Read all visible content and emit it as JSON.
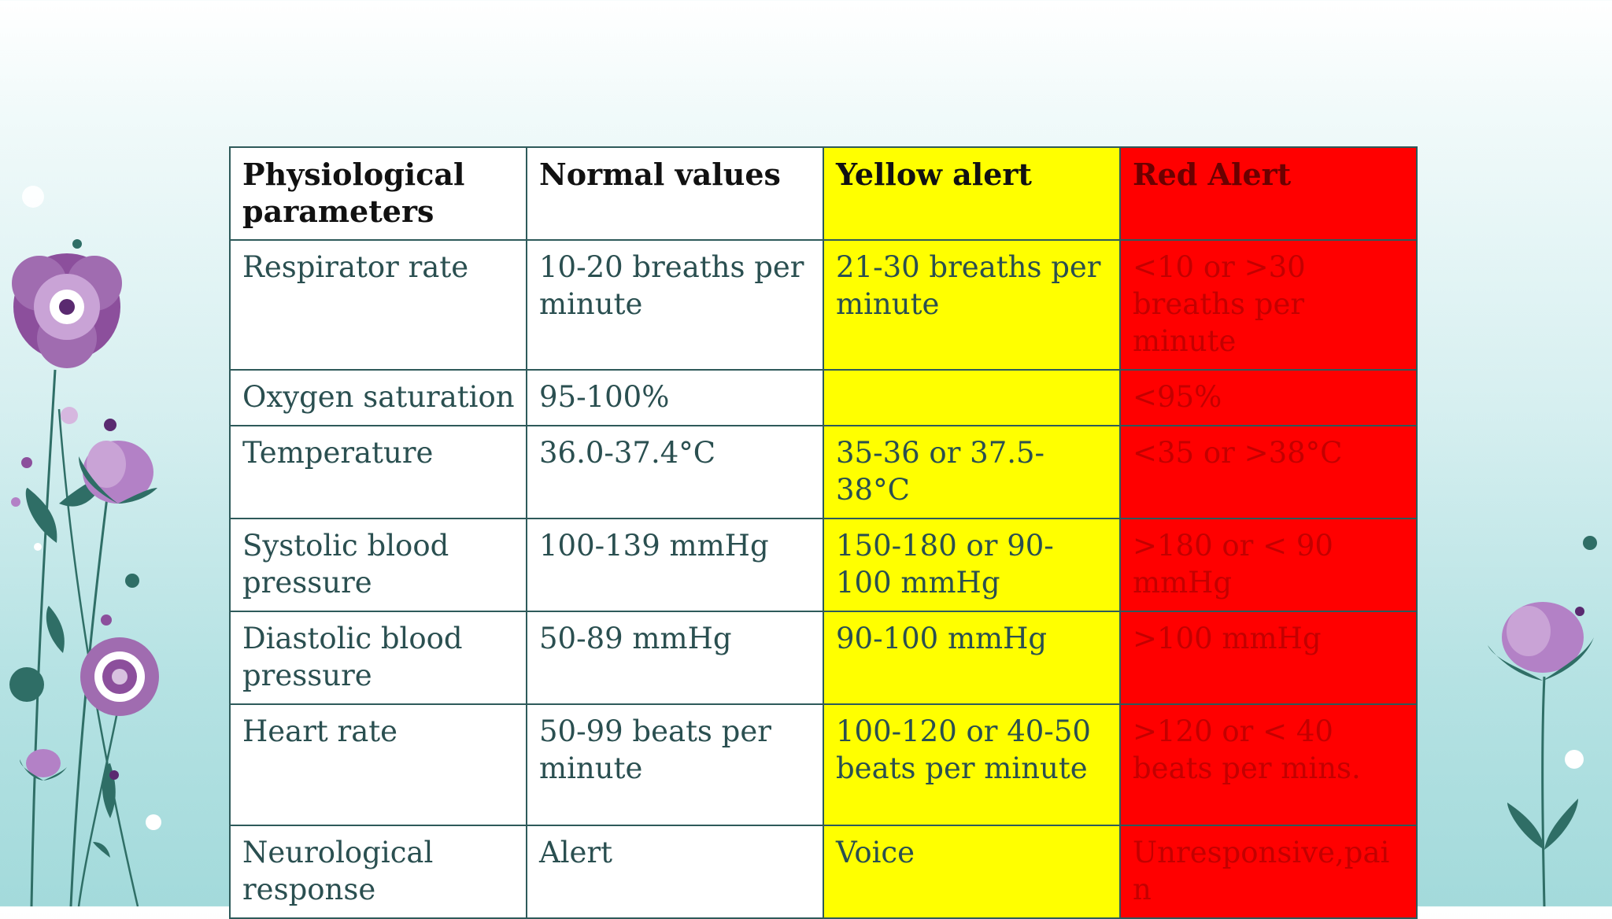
{
  "table": {
    "headers": [
      "Physiological parameters",
      "Normal values",
      "Yellow alert",
      "Red Alert"
    ],
    "rows": [
      [
        "Respirator rate",
        "10-20 breaths per minute",
        "21-30 breaths per minute",
        "<10 or >30 breaths per minute"
      ],
      [
        "Oxygen saturation",
        "95-100%",
        "",
        "<95%"
      ],
      [
        "Temperature",
        "36.0-37.4°C",
        "35-36 or 37.5-38°C",
        "<35 or >38°C"
      ],
      [
        "Systolic blood pressure",
        "100-139 mmHg",
        "150-180 or 90-100 mmHg",
        ">180 or < 90 mmHg"
      ],
      [
        "Diastolic blood pressure",
        "50-89 mmHg",
        "90-100 mmHg",
        ">100 mmHg"
      ],
      [
        "Heart rate",
        "50-99 beats per minute",
        "100-120 or 40-50 beats per minute",
        ">120 or < 40 beats per mins."
      ],
      [
        "Neurological response",
        "Alert",
        "Voice",
        "Unresponsive,pain"
      ]
    ]
  },
  "colors": {
    "yellow_alert": "#ffff00",
    "red_alert": "#ff0000",
    "border": "#2e5a5a",
    "background_bottom": "#a3dadb"
  },
  "decorations": [
    "flower-cluster-left",
    "flower-right"
  ]
}
